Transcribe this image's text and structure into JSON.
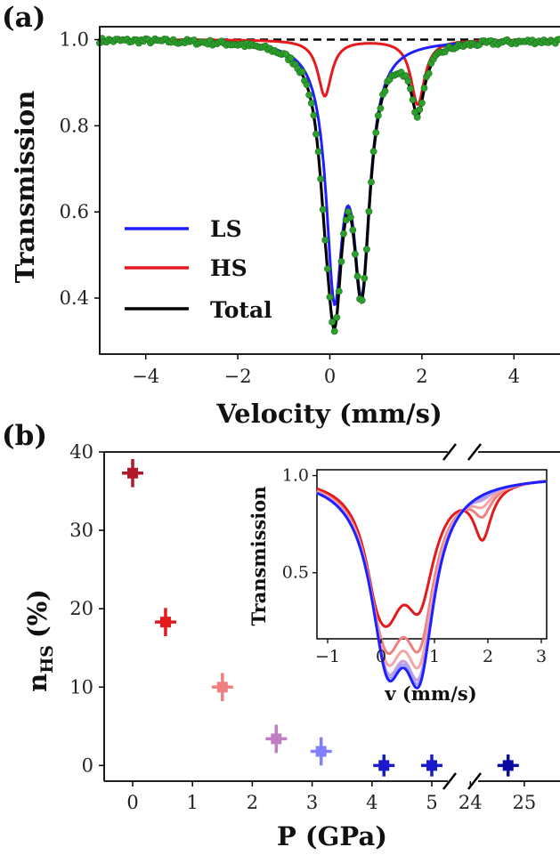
{
  "chart_data": [
    {
      "panel": "(a)",
      "type": "line",
      "title": "",
      "xlabel": "Velocity (mm/s)",
      "ylabel": "Transmission",
      "xlim": [
        -5,
        5
      ],
      "ylim": [
        0.27,
        1.03
      ],
      "xticks": [
        -4,
        -2,
        0,
        2,
        4
      ],
      "yticks": [
        1.0,
        0.8,
        0.6,
        0.4
      ],
      "legend": {
        "position": "bottom-left",
        "entries": [
          "LS",
          "HS",
          "Total"
        ]
      },
      "baseline": 1.0,
      "series": [
        {
          "name": "LS",
          "color": "#1f1fff",
          "lines": [
            {
              "center": 0.1,
              "depth": 0.55,
              "width": 0.22
            },
            {
              "center": 0.69,
              "depth": 0.53,
              "width": 0.22
            }
          ]
        },
        {
          "name": "HS",
          "color": "#e41a1c",
          "lines": [
            {
              "center": -0.11,
              "depth": 0.13,
              "width": 0.18
            },
            {
              "center": 1.91,
              "depth": 0.15,
              "width": 0.18
            }
          ]
        },
        {
          "name": "Total",
          "color": "#000000"
        }
      ],
      "data_points": {
        "color": "#2ca02c",
        "step": 0.05,
        "noise": 0.006
      }
    },
    {
      "panel": "(b)",
      "type": "scatter",
      "title": "",
      "xlabel": "P (GPa)",
      "ylabel": "n_HS (%)",
      "ylabel_main": "n",
      "ylabel_sub": "HS",
      "ylabel_unit": "(%)",
      "ylim": [
        -2,
        40
      ],
      "yticks": [
        0,
        10,
        20,
        30,
        40
      ],
      "xticks": [
        {
          "label": "0",
          "value": 0
        },
        {
          "label": "1",
          "value": 1
        },
        {
          "label": "2",
          "value": 2
        },
        {
          "label": "3",
          "value": 3
        },
        {
          "label": "4",
          "value": 4
        },
        {
          "label": "5",
          "value": 5
        },
        {
          "label": "24",
          "value": 24
        },
        {
          "label": "25",
          "value": 25
        }
      ],
      "axis_break": {
        "between": [
          5,
          24
        ]
      },
      "points": [
        {
          "x": 0.0,
          "y": 37.3,
          "xerr": 0.1,
          "yerr": 1.8,
          "color": "#b2182b"
        },
        {
          "x": 0.55,
          "y": 18.3,
          "xerr": 0.1,
          "yerr": 1.8,
          "color": "#e41a1c"
        },
        {
          "x": 1.5,
          "y": 10.0,
          "xerr": 0.1,
          "yerr": 1.8,
          "color": "#f08080"
        },
        {
          "x": 2.4,
          "y": 3.4,
          "xerr": 0.1,
          "yerr": 1.8,
          "color": "#c07fc0"
        },
        {
          "x": 3.15,
          "y": 1.8,
          "xerr": 0.1,
          "yerr": 1.8,
          "color": "#8080ff"
        },
        {
          "x": 4.2,
          "y": 0.0,
          "xerr": 0.1,
          "yerr": 1.4,
          "color": "#1a1acc"
        },
        {
          "x": 5.0,
          "y": 0.0,
          "xerr": 0.1,
          "yerr": 1.4,
          "color": "#1a1acc"
        },
        {
          "x": 24.7,
          "y": 0.0,
          "xerr": 0.1,
          "yerr": 1.4,
          "color": "#0a0aa0"
        }
      ],
      "inset": {
        "type": "line",
        "xlabel": "v (mm/s)",
        "ylabel": "Transmission",
        "xlim": [
          -1.2,
          3.1
        ],
        "ylim": [
          0.16,
          1.03
        ],
        "xticks": [
          -1,
          0,
          1,
          2,
          3
        ],
        "yticks": [
          1.0,
          0.5
        ],
        "series": [
          {
            "hs_fraction": 0.37,
            "color": "#e41a1c"
          },
          {
            "hs_fraction": 0.18,
            "color": "#f08080"
          },
          {
            "hs_fraction": 0.1,
            "color": "#f4a6a6"
          },
          {
            "hs_fraction": 0.04,
            "color": "#c9a0d6"
          },
          {
            "hs_fraction": 0.02,
            "color": "#a0a0ff"
          },
          {
            "hs_fraction": 0.0,
            "color": "#1f1fff"
          }
        ]
      }
    }
  ]
}
